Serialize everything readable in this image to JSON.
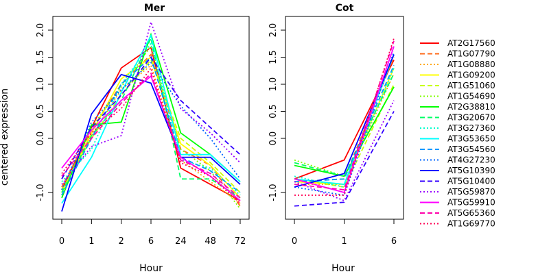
{
  "chart_data": {
    "type": "line",
    "ylabel": "centered expression",
    "yticks": [
      "-1.0",
      "0.0",
      "0.5",
      "1.0",
      "1.5",
      "2.0"
    ],
    "panels": [
      {
        "title": "Mer",
        "xlabel": "Hour",
        "categories": [
          "0",
          "1",
          "2",
          "6",
          "24",
          "48",
          "72"
        ],
        "ylim": [
          -1.5,
          2.2
        ]
      },
      {
        "title": "Cot",
        "xlabel": "Hour",
        "categories": [
          "0",
          "1",
          "6"
        ],
        "ylim": [
          -1.5,
          2.2
        ]
      }
    ],
    "series": [
      {
        "name": "AT2G17560",
        "color": "#ff0000",
        "dash": "solid",
        "mer": [
          -0.95,
          0.2,
          1.3,
          1.68,
          -0.55,
          -0.85,
          -1.15
        ],
        "cot": [
          -0.75,
          -0.4,
          1.45
        ]
      },
      {
        "name": "AT1G07790",
        "color": "#ff6a1a",
        "dash": "dashed",
        "mer": [
          -0.9,
          0.15,
          1.0,
          1.55,
          -0.2,
          -0.5,
          -1.25
        ],
        "cot": [
          -0.8,
          -0.75,
          1.5
        ]
      },
      {
        "name": "AT1G08880",
        "color": "#ffaa00",
        "dash": "dotted",
        "mer": [
          -1.0,
          0.05,
          0.9,
          1.35,
          -0.4,
          -0.8,
          -1.2
        ],
        "cot": [
          -0.85,
          -0.85,
          1.2
        ]
      },
      {
        "name": "AT1G09200",
        "color": "#ffff00",
        "dash": "solid",
        "mer": [
          -1.0,
          0.1,
          1.1,
          1.5,
          -0.1,
          -0.5,
          -1.1
        ],
        "cot": [
          -0.8,
          -0.85,
          1.3
        ]
      },
      {
        "name": "AT1G51060",
        "color": "#c8ff00",
        "dash": "dashed",
        "mer": [
          -0.95,
          0.0,
          0.8,
          1.45,
          0.0,
          -0.45,
          -1.0
        ],
        "cot": [
          -0.75,
          -0.9,
          1.0
        ]
      },
      {
        "name": "AT1G54690",
        "color": "#80ff00",
        "dash": "dotted",
        "mer": [
          -1.05,
          0.2,
          0.95,
          1.7,
          -0.2,
          -0.6,
          -1.3
        ],
        "cot": [
          -0.4,
          -0.7,
          0.95
        ]
      },
      {
        "name": "AT2G38810",
        "color": "#00ff00",
        "dash": "solid",
        "mer": [
          -1.1,
          0.25,
          0.3,
          1.92,
          0.1,
          -0.3,
          -0.8
        ],
        "cot": [
          -0.5,
          -0.7,
          0.95
        ]
      },
      {
        "name": "AT3G20670",
        "color": "#00ff66",
        "dash": "dashed",
        "mer": [
          -1.0,
          0.05,
          0.7,
          1.85,
          -0.75,
          -0.75,
          -1.1
        ],
        "cot": [
          -0.45,
          -0.7,
          1.2
        ]
      },
      {
        "name": "AT3G27360",
        "color": "#00ffcc",
        "dash": "dotted",
        "mer": [
          -0.8,
          -0.2,
          1.0,
          1.75,
          -0.4,
          -0.55,
          -1.05
        ],
        "cot": [
          -0.7,
          -0.9,
          1.3
        ]
      },
      {
        "name": "AT3G53650",
        "color": "#00ffff",
        "dash": "solid",
        "mer": [
          -1.2,
          -0.35,
          0.85,
          1.9,
          -0.3,
          -0.3,
          -0.8
        ],
        "cot": [
          -0.75,
          -0.85,
          1.55
        ]
      },
      {
        "name": "AT3G54560",
        "color": "#0099ff",
        "dash": "dashed",
        "mer": [
          -1.05,
          0.0,
          1.0,
          1.5,
          -0.35,
          -0.6,
          -1.0
        ],
        "cot": [
          -0.8,
          -0.75,
          1.35
        ]
      },
      {
        "name": "AT4G27230",
        "color": "#0066ff",
        "dash": "dotted",
        "mer": [
          -0.95,
          0.3,
          0.9,
          1.4,
          0.6,
          0.0,
          -0.75
        ],
        "cot": [
          -0.9,
          -1.05,
          1.6
        ]
      },
      {
        "name": "AT5G10390",
        "color": "#0000ff",
        "dash": "solid",
        "mer": [
          -1.35,
          0.45,
          1.18,
          1.02,
          -0.35,
          -0.35,
          -0.85
        ],
        "cot": [
          -0.9,
          -0.65,
          1.55
        ]
      },
      {
        "name": "AT5G10400",
        "color": "#3300ff",
        "dash": "dashed",
        "mer": [
          -0.75,
          0.2,
          0.8,
          1.5,
          0.7,
          0.2,
          -0.3
        ],
        "cot": [
          -1.25,
          -1.18,
          0.5
        ]
      },
      {
        "name": "AT5G59870",
        "color": "#9900ff",
        "dash": "dotted",
        "mer": [
          -0.85,
          -0.15,
          0.05,
          2.15,
          0.55,
          0.1,
          -0.45
        ],
        "cot": [
          -0.8,
          -1.15,
          0.7
        ]
      },
      {
        "name": "AT5G59910",
        "color": "#ff00ff",
        "dash": "solid",
        "mer": [
          -0.55,
          0.15,
          0.7,
          1.15,
          -0.35,
          -0.7,
          -1.15
        ],
        "cot": [
          -0.75,
          -1.0,
          1.7
        ]
      },
      {
        "name": "AT5G65360",
        "color": "#ff00aa",
        "dash": "dashed",
        "mer": [
          -0.7,
          0.0,
          0.65,
          1.2,
          -0.4,
          -0.65,
          -1.1
        ],
        "cot": [
          -0.85,
          -0.95,
          1.8
        ]
      },
      {
        "name": "AT1G69770",
        "color": "#ff0055",
        "dash": "dotted",
        "mer": [
          -0.65,
          0.1,
          0.55,
          1.3,
          -0.45,
          -0.7,
          -1.2
        ],
        "cot": [
          -1.05,
          -1.05,
          1.85
        ]
      }
    ]
  }
}
